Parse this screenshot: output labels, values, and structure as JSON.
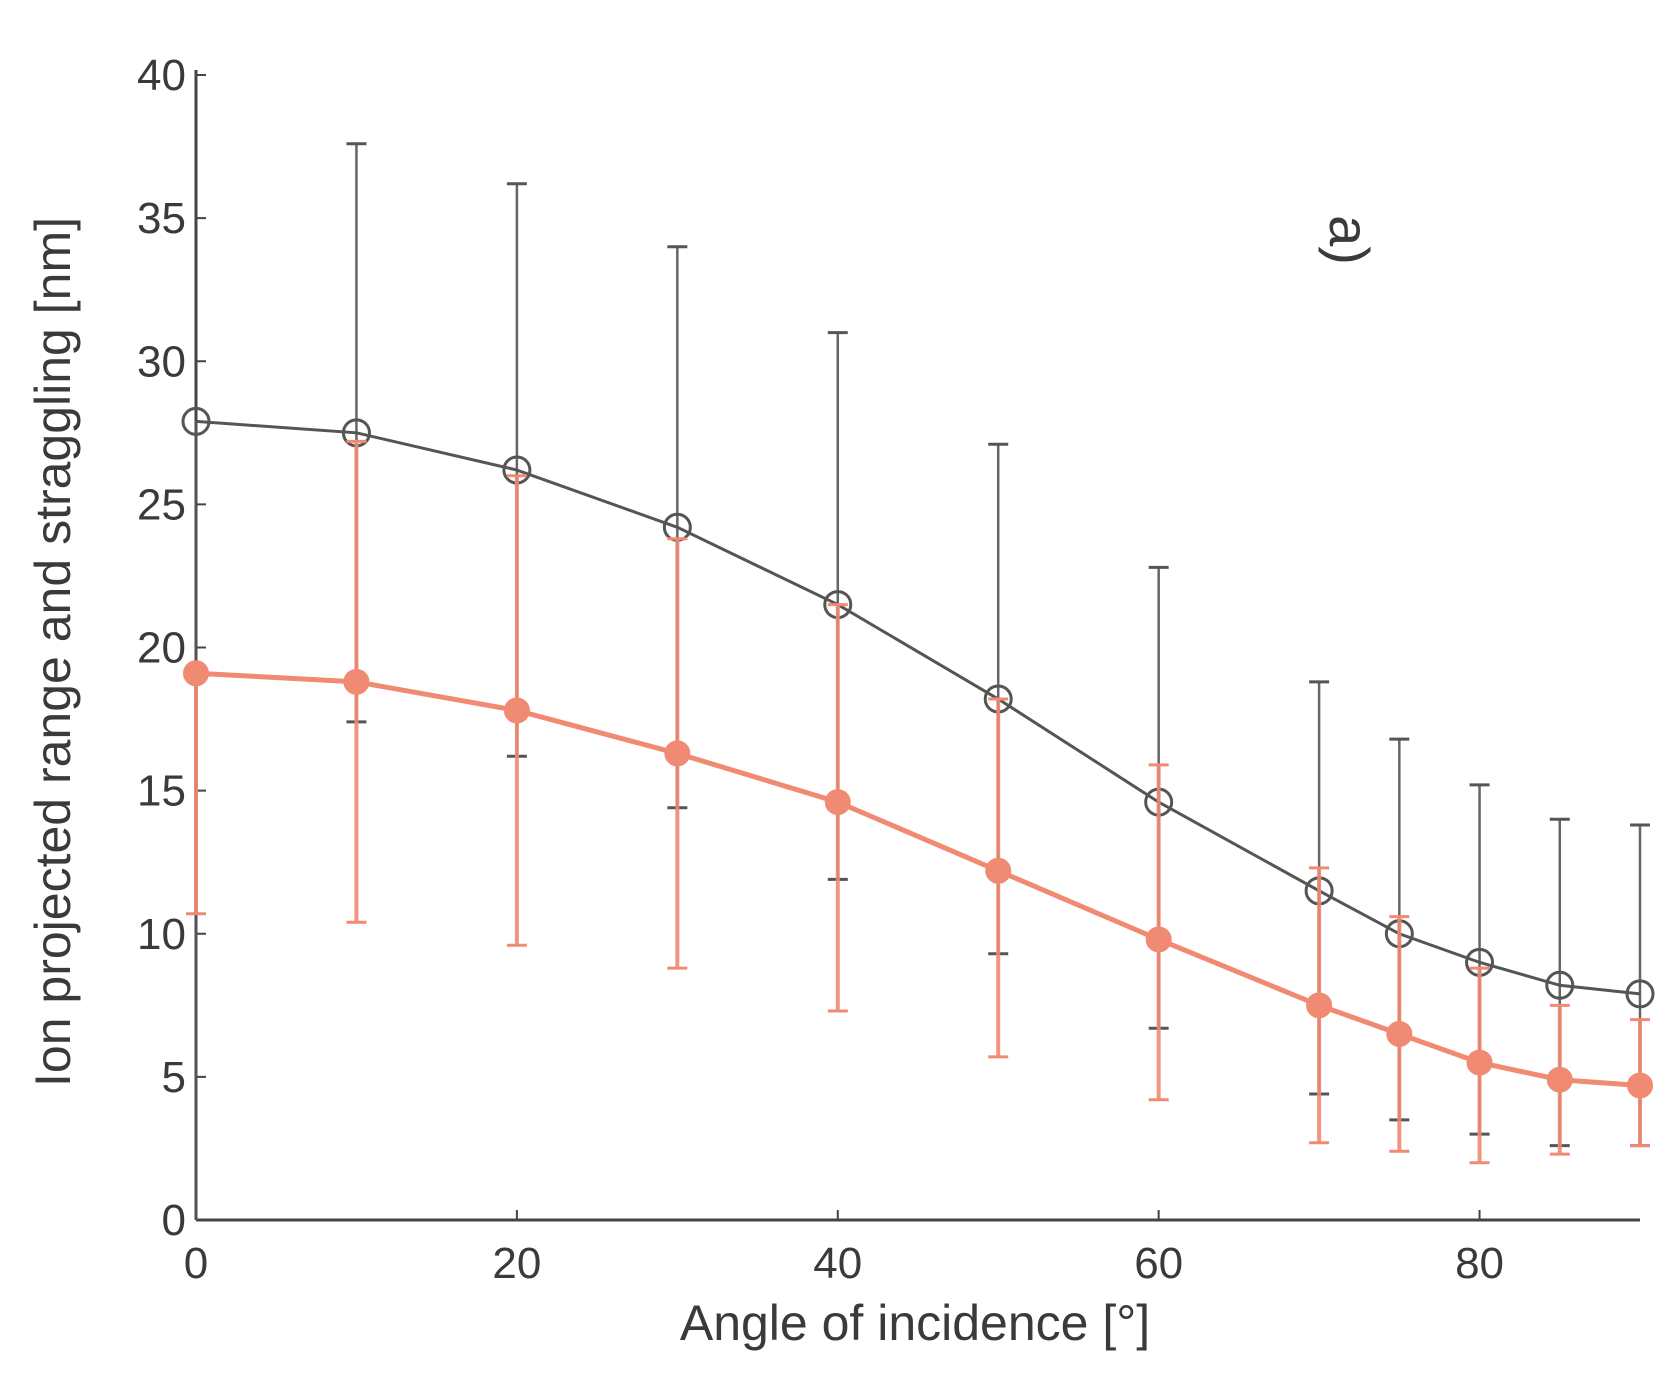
{
  "chart_data": {
    "type": "line",
    "title": "",
    "panel_label": "a)",
    "xlabel": "Angle of incidence [°]",
    "ylabel": "Ion projected range and straggling [nm]",
    "xlim": [
      0,
      90
    ],
    "ylim": [
      0,
      40
    ],
    "xticks": [
      0,
      20,
      40,
      60,
      80
    ],
    "yticks": [
      0,
      5,
      10,
      15,
      20,
      25,
      30,
      35,
      40
    ],
    "grid": false,
    "legend": "none",
    "x": [
      0,
      10,
      20,
      30,
      40,
      50,
      60,
      70,
      75,
      80,
      85,
      90
    ],
    "series": [
      {
        "color": "#555555",
        "marker": "open-circle",
        "values": [
          27.9,
          27.5,
          26.2,
          24.2,
          21.5,
          18.2,
          14.6,
          11.5,
          10.0,
          9.0,
          8.2,
          7.9
        ],
        "err_low": [
          27.9,
          10.1,
          10.0,
          9.8,
          9.6,
          8.9,
          7.9,
          7.1,
          6.5,
          6.0,
          5.6,
          5.3
        ],
        "err_high": [
          0.0,
          10.1,
          10.0,
          9.8,
          9.5,
          8.9,
          8.2,
          7.3,
          6.8,
          6.2,
          5.8,
          5.9
        ]
      },
      {
        "color": "#f08a72",
        "marker": "filled-circle",
        "values": [
          19.1,
          18.8,
          17.8,
          16.3,
          14.6,
          12.2,
          9.8,
          7.5,
          6.5,
          5.5,
          4.9,
          4.7
        ],
        "err_low": [
          8.4,
          8.4,
          8.2,
          7.5,
          7.3,
          6.5,
          5.6,
          4.8,
          4.1,
          3.5,
          2.6,
          2.1
        ],
        "err_high": [
          0.0,
          8.4,
          8.2,
          7.5,
          6.9,
          6.0,
          6.1,
          4.8,
          4.1,
          3.3,
          2.6,
          2.3
        ]
      }
    ]
  }
}
